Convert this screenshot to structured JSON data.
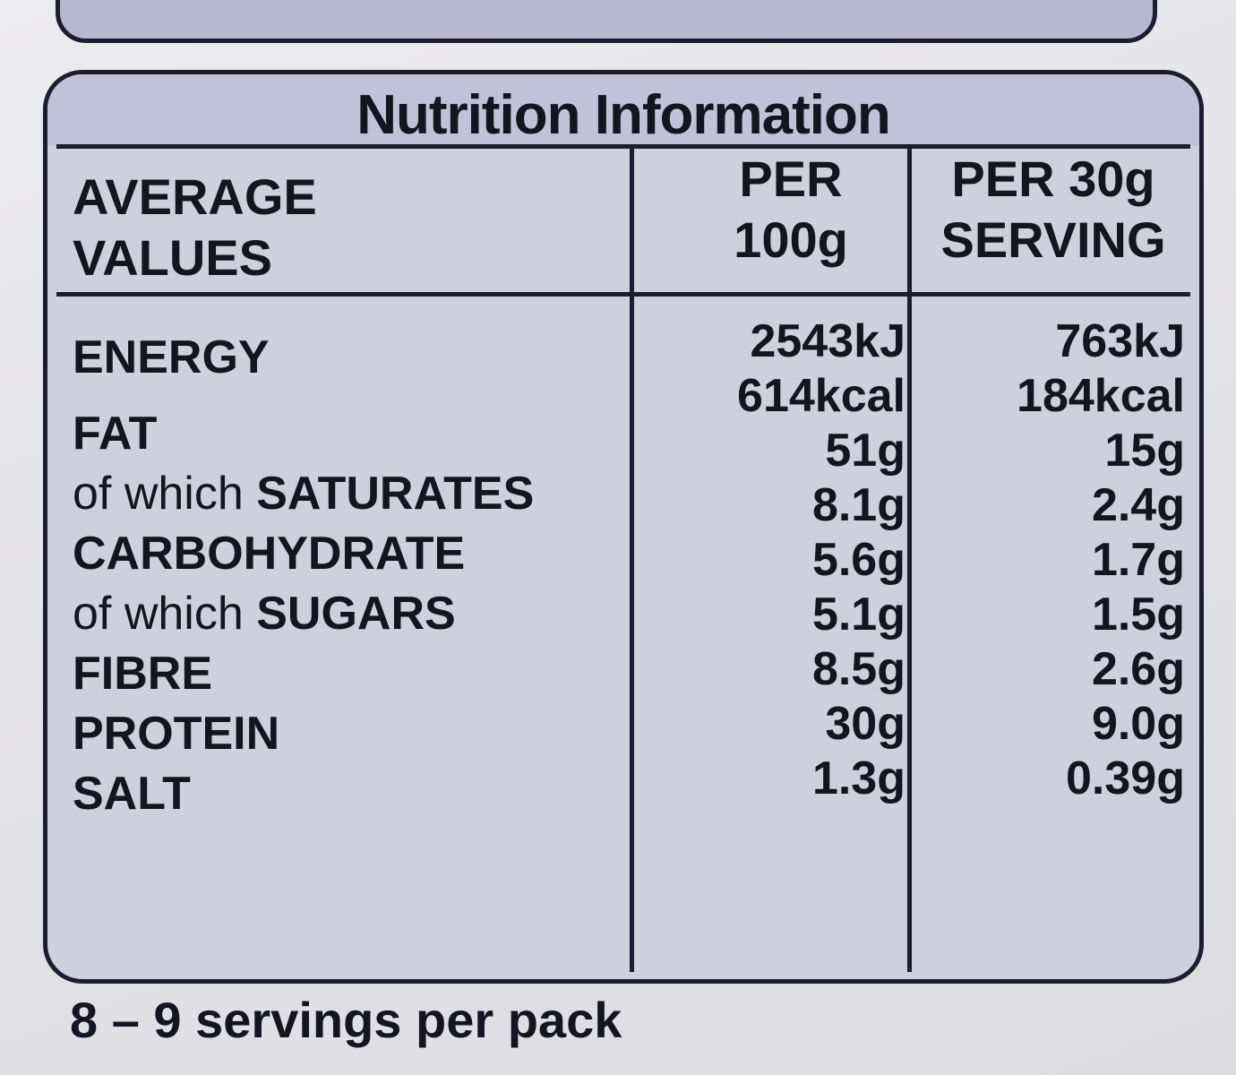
{
  "panel": {
    "title": "Nutrition Information"
  },
  "table": {
    "header": {
      "label_line1": "AVERAGE",
      "label_line2": "VALUES",
      "col1_line1": "PER",
      "col1_line2": "100g",
      "col2_line1": "PER 30g",
      "col2_line2": "SERVING"
    },
    "rows": [
      {
        "label": "ENERGY",
        "per100g": "2543kJ",
        "per30g": "763kJ"
      },
      {
        "label": "",
        "per100g": "614kcal",
        "per30g": "184kcal"
      },
      {
        "label": "FAT",
        "per100g": "51g",
        "per30g": "15g"
      },
      {
        "label_prefix": "of which ",
        "label": "SATURATES",
        "per100g": "8.1g",
        "per30g": "2.4g"
      },
      {
        "label": "CARBOHYDRATE",
        "per100g": "5.6g",
        "per30g": "1.7g"
      },
      {
        "label_prefix": "of which ",
        "label": "SUGARS",
        "per100g": "5.1g",
        "per30g": "1.5g"
      },
      {
        "label": "FIBRE",
        "per100g": "8.5g",
        "per30g": "2.6g"
      },
      {
        "label": "PROTEIN",
        "per100g": "30g",
        "per30g": "9.0g"
      },
      {
        "label": "SALT",
        "per100g": "1.3g",
        "per30g": "0.39g"
      }
    ]
  },
  "footnote": "8 – 9 servings per pack"
}
